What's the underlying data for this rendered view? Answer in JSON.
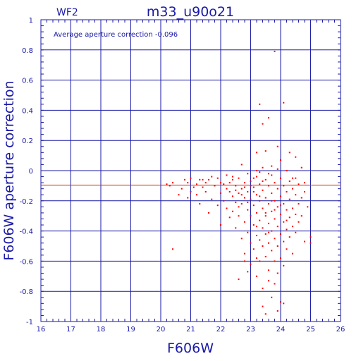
{
  "header": {
    "chip": "WF2",
    "title": "m33_u90o21"
  },
  "annotation": "Average aperture correction  -0.096",
  "colors": {
    "axis": "#1a1aa6",
    "points": "#ff0000",
    "reference_line": "#cc2200"
  },
  "chart_data": {
    "type": "scatter",
    "title": "m33_u90o21",
    "xlabel": "F606W",
    "ylabel": "F606W aperture correction",
    "xlim": [
      16,
      26
    ],
    "ylim": [
      -1,
      1
    ],
    "x_ticks": [
      "16",
      "17",
      "18",
      "19",
      "20",
      "21",
      "22",
      "23",
      "24",
      "25",
      "26"
    ],
    "y_ticks": [
      "-1",
      "-0.8",
      "-0.6",
      "-0.4",
      "-0.2",
      "0",
      "0.2",
      "0.4",
      "0.6",
      "0.8",
      "1"
    ],
    "grid": true,
    "reference_line_y": -0.096,
    "points": [
      [
        23.8,
        0.79
      ],
      [
        23.3,
        0.44
      ],
      [
        24.1,
        0.45
      ],
      [
        23.4,
        0.31
      ],
      [
        23.6,
        0.35
      ],
      [
        23.5,
        0.13
      ],
      [
        23.9,
        0.16
      ],
      [
        24.0,
        0.07
      ],
      [
        23.7,
        0.03
      ],
      [
        23.4,
        0.02
      ],
      [
        23.2,
        0.12
      ],
      [
        24.3,
        0.12
      ],
      [
        24.7,
        0.02
      ],
      [
        24.5,
        0.09
      ],
      [
        22.7,
        0.04
      ],
      [
        23.2,
        0.0
      ],
      [
        23.9,
        0.01
      ],
      [
        20.2,
        -0.09
      ],
      [
        20.3,
        -0.1
      ],
      [
        20.4,
        -0.08
      ],
      [
        20.4,
        -0.52
      ],
      [
        20.6,
        -0.16
      ],
      [
        20.7,
        -0.12
      ],
      [
        20.8,
        -0.06
      ],
      [
        20.9,
        -0.08
      ],
      [
        20.9,
        -0.18
      ],
      [
        21.0,
        -0.05
      ],
      [
        21.0,
        -0.14
      ],
      [
        21.1,
        -0.11
      ],
      [
        21.2,
        -0.09
      ],
      [
        21.2,
        -0.16
      ],
      [
        21.3,
        -0.06
      ],
      [
        21.3,
        -0.22
      ],
      [
        21.4,
        -0.11
      ],
      [
        21.5,
        -0.14
      ],
      [
        21.5,
        -0.08
      ],
      [
        21.6,
        -0.28
      ],
      [
        21.6,
        -0.06
      ],
      [
        21.7,
        -0.19
      ],
      [
        21.8,
        -0.1
      ],
      [
        21.9,
        -0.05
      ],
      [
        21.9,
        -0.23
      ],
      [
        22.0,
        -0.15
      ],
      [
        22.0,
        -0.36
      ],
      [
        22.1,
        -0.2
      ],
      [
        22.1,
        -0.09
      ],
      [
        22.2,
        -0.25
      ],
      [
        22.2,
        -0.12
      ],
      [
        22.3,
        -0.31
      ],
      [
        22.3,
        -0.08
      ],
      [
        22.4,
        -0.06
      ],
      [
        22.4,
        -0.17
      ],
      [
        22.4,
        -0.27
      ],
      [
        22.5,
        -0.1
      ],
      [
        22.5,
        -0.21
      ],
      [
        22.5,
        -0.38
      ],
      [
        22.6,
        -0.15
      ],
      [
        22.6,
        -0.05
      ],
      [
        22.6,
        -0.3
      ],
      [
        22.7,
        -0.12
      ],
      [
        22.7,
        -0.22
      ],
      [
        22.7,
        -0.45
      ],
      [
        22.8,
        -0.08
      ],
      [
        22.8,
        -0.18
      ],
      [
        22.8,
        -0.34
      ],
      [
        22.8,
        -0.55
      ],
      [
        22.9,
        -0.02
      ],
      [
        22.9,
        -0.14
      ],
      [
        22.9,
        -0.26
      ],
      [
        22.9,
        -0.41
      ],
      [
        23.0,
        -0.07
      ],
      [
        23.0,
        -0.19
      ],
      [
        23.0,
        -0.3
      ],
      [
        23.0,
        -0.48
      ],
      [
        23.0,
        -0.62
      ],
      [
        23.1,
        -0.11
      ],
      [
        23.1,
        -0.23
      ],
      [
        23.1,
        -0.36
      ],
      [
        23.1,
        -0.52
      ],
      [
        23.2,
        -0.04
      ],
      [
        23.2,
        -0.16
      ],
      [
        23.2,
        -0.28
      ],
      [
        23.2,
        -0.43
      ],
      [
        23.2,
        -0.7
      ],
      [
        23.3,
        -0.09
      ],
      [
        23.3,
        -0.2
      ],
      [
        23.3,
        -0.33
      ],
      [
        23.3,
        -0.46
      ],
      [
        23.3,
        -0.6
      ],
      [
        23.4,
        -0.13
      ],
      [
        23.4,
        -0.25
      ],
      [
        23.4,
        -0.38
      ],
      [
        23.4,
        -0.5
      ],
      [
        23.4,
        -0.78
      ],
      [
        23.5,
        -0.06
      ],
      [
        23.5,
        -0.18
      ],
      [
        23.5,
        -0.3
      ],
      [
        23.5,
        -0.42
      ],
      [
        23.5,
        -0.57
      ],
      [
        23.5,
        -0.95
      ],
      [
        23.6,
        -0.1
      ],
      [
        23.6,
        -0.22
      ],
      [
        23.6,
        -0.35
      ],
      [
        23.6,
        -0.48
      ],
      [
        23.6,
        -0.66
      ],
      [
        23.7,
        -0.03
      ],
      [
        23.7,
        -0.15
      ],
      [
        23.7,
        -0.27
      ],
      [
        23.7,
        -0.4
      ],
      [
        23.7,
        -0.53
      ],
      [
        23.7,
        -0.84
      ],
      [
        23.8,
        -0.08
      ],
      [
        23.8,
        -0.2
      ],
      [
        23.8,
        -0.32
      ],
      [
        23.8,
        -0.45
      ],
      [
        23.8,
        -0.6
      ],
      [
        23.8,
        -0.75
      ],
      [
        23.9,
        -0.12
      ],
      [
        23.9,
        -0.24
      ],
      [
        23.9,
        -0.37
      ],
      [
        23.9,
        -0.5
      ],
      [
        23.9,
        -0.68
      ],
      [
        24.0,
        -0.05
      ],
      [
        24.0,
        -0.17
      ],
      [
        24.0,
        -0.29
      ],
      [
        24.0,
        -0.42
      ],
      [
        24.0,
        -0.58
      ],
      [
        24.0,
        -0.87
      ],
      [
        24.1,
        -0.1
      ],
      [
        24.1,
        -0.22
      ],
      [
        24.1,
        -0.34
      ],
      [
        24.1,
        -0.47
      ],
      [
        24.1,
        -0.63
      ],
      [
        24.2,
        -0.14
      ],
      [
        24.2,
        -0.26
      ],
      [
        24.2,
        -0.39
      ],
      [
        24.2,
        -0.52
      ],
      [
        24.3,
        -0.07
      ],
      [
        24.3,
        -0.19
      ],
      [
        24.3,
        -0.31
      ],
      [
        24.3,
        -0.44
      ],
      [
        24.4,
        -0.12
      ],
      [
        24.4,
        -0.25
      ],
      [
        24.4,
        -0.37
      ],
      [
        24.4,
        -0.55
      ],
      [
        24.5,
        -0.16
      ],
      [
        24.5,
        -0.29
      ],
      [
        24.5,
        -0.41
      ],
      [
        24.6,
        -0.09
      ],
      [
        24.6,
        -0.22
      ],
      [
        24.6,
        -0.34
      ],
      [
        24.7,
        -0.18
      ],
      [
        24.7,
        -0.3
      ],
      [
        24.8,
        -0.14
      ],
      [
        24.8,
        -0.47
      ],
      [
        24.9,
        -0.24
      ],
      [
        25.0,
        -0.44
      ],
      [
        25.0,
        -0.48
      ],
      [
        22.6,
        -0.72
      ],
      [
        22.9,
        -0.67
      ],
      [
        23.4,
        -0.9
      ],
      [
        23.6,
        -0.73
      ],
      [
        23.9,
        -0.93
      ],
      [
        24.1,
        -0.88
      ],
      [
        23.2,
        -0.58
      ],
      [
        22.8,
        -0.6
      ],
      [
        23.0,
        -0.1
      ],
      [
        23.1,
        -0.05
      ],
      [
        22.4,
        -0.04
      ],
      [
        22.2,
        -0.03
      ],
      [
        23.3,
        -0.01
      ],
      [
        23.6,
        -0.02
      ],
      [
        24.2,
        0.0
      ],
      [
        24.4,
        -0.05
      ],
      [
        24.8,
        -0.08
      ],
      [
        21.7,
        -0.04
      ],
      [
        21.4,
        -0.06
      ],
      [
        22.0,
        -0.08
      ],
      [
        22.3,
        -0.14
      ],
      [
        22.6,
        -0.24
      ],
      [
        23.5,
        -0.28
      ],
      [
        23.8,
        -0.26
      ],
      [
        24.2,
        -0.33
      ],
      [
        24.5,
        -0.05
      ],
      [
        23.1,
        -0.14
      ],
      [
        22.5,
        -0.13
      ],
      [
        22.7,
        -0.16
      ],
      [
        22.9,
        -0.21
      ],
      [
        23.3,
        -0.17
      ],
      [
        23.7,
        -0.2
      ],
      [
        24.0,
        -0.23
      ],
      [
        23.4,
        -0.07
      ],
      [
        22.8,
        -0.11
      ],
      [
        23.6,
        -0.41
      ],
      [
        23.2,
        -0.37
      ]
    ]
  }
}
